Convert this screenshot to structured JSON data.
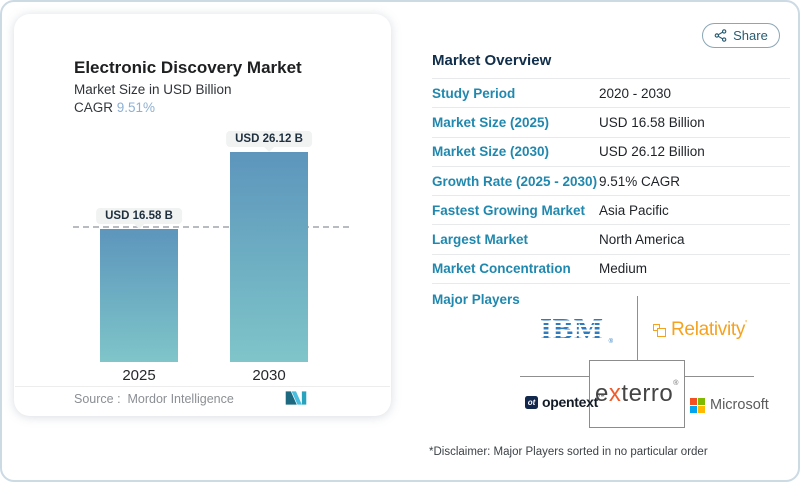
{
  "share_button": {
    "label": "Share"
  },
  "chart_card": {
    "title": "Electronic Discovery Market",
    "subtitle": "Market Size in USD Billion",
    "cagr_label": "CAGR ",
    "cagr_value": "9.51%",
    "bars": [
      {
        "year": "2025",
        "value_label": "USD 16.58 B"
      },
      {
        "year": "2030",
        "value_label": "USD 26.12 B"
      }
    ],
    "source_text": "Source :  Mordor Intelligence"
  },
  "overview": {
    "title": "Market Overview",
    "rows": [
      {
        "label": "Study Period",
        "value": "2020 - 2030"
      },
      {
        "label": "Market Size (2025)",
        "value": "USD 16.58 Billion"
      },
      {
        "label": "Market Size (2030)",
        "value": "USD 26.12 Billion"
      },
      {
        "label": "Growth Rate (2025 - 2030)",
        "value": "9.51% CAGR"
      },
      {
        "label": "Fastest Growing Market",
        "value": "Asia Pacific"
      },
      {
        "label": "Largest Market",
        "value": "North America"
      },
      {
        "label": "Market Concentration",
        "value": "Medium"
      }
    ],
    "major_players_label": "Major Players",
    "disclaimer": "*Disclaimer: Major Players sorted in no particular order"
  },
  "logos": {
    "ibm": "IBM",
    "ibm_reg": "®",
    "relativity": "Relativity",
    "relativity_tick": "'",
    "opentext_badge": "ot",
    "opentext": "opentext",
    "opentext_tm": "™",
    "exterro_e": "e",
    "exterro_x": "x",
    "exterro_rest": "terro",
    "exterro_reg": "®",
    "microsoft": "Microsoft"
  },
  "colors": {
    "accent_label_blue": "#2088ae",
    "cagr_value_blue": "#8cb0d4",
    "bar_gradient_top": "#5d95bc",
    "bar_gradient_bottom": "#7fc5c9",
    "ibm_blue": "#2e7bc0",
    "relativity_orange": "#f6a21f",
    "exterro_orange": "#f15b2b",
    "opentext_navy": "#12284c",
    "microsoft_red": "#f25022",
    "microsoft_green": "#7fba00",
    "microsoft_blue": "#00a4ef",
    "microsoft_yellow": "#ffb900",
    "share_teal": "#2a5b70",
    "page_border": "#ccdae4"
  },
  "chart_data": {
    "type": "bar",
    "title": "Electronic Discovery Market",
    "subtitle": "Market Size in USD Billion",
    "categories": [
      "2025",
      "2030"
    ],
    "values": [
      16.58,
      26.12
    ],
    "unit": "USD Billion",
    "data_labels": [
      "USD 16.58 B",
      "USD 26.12 B"
    ],
    "cagr": "9.51%",
    "reference_line_y": 16.58,
    "legend": "none",
    "grid": "off",
    "source": "Mordor Intelligence"
  }
}
